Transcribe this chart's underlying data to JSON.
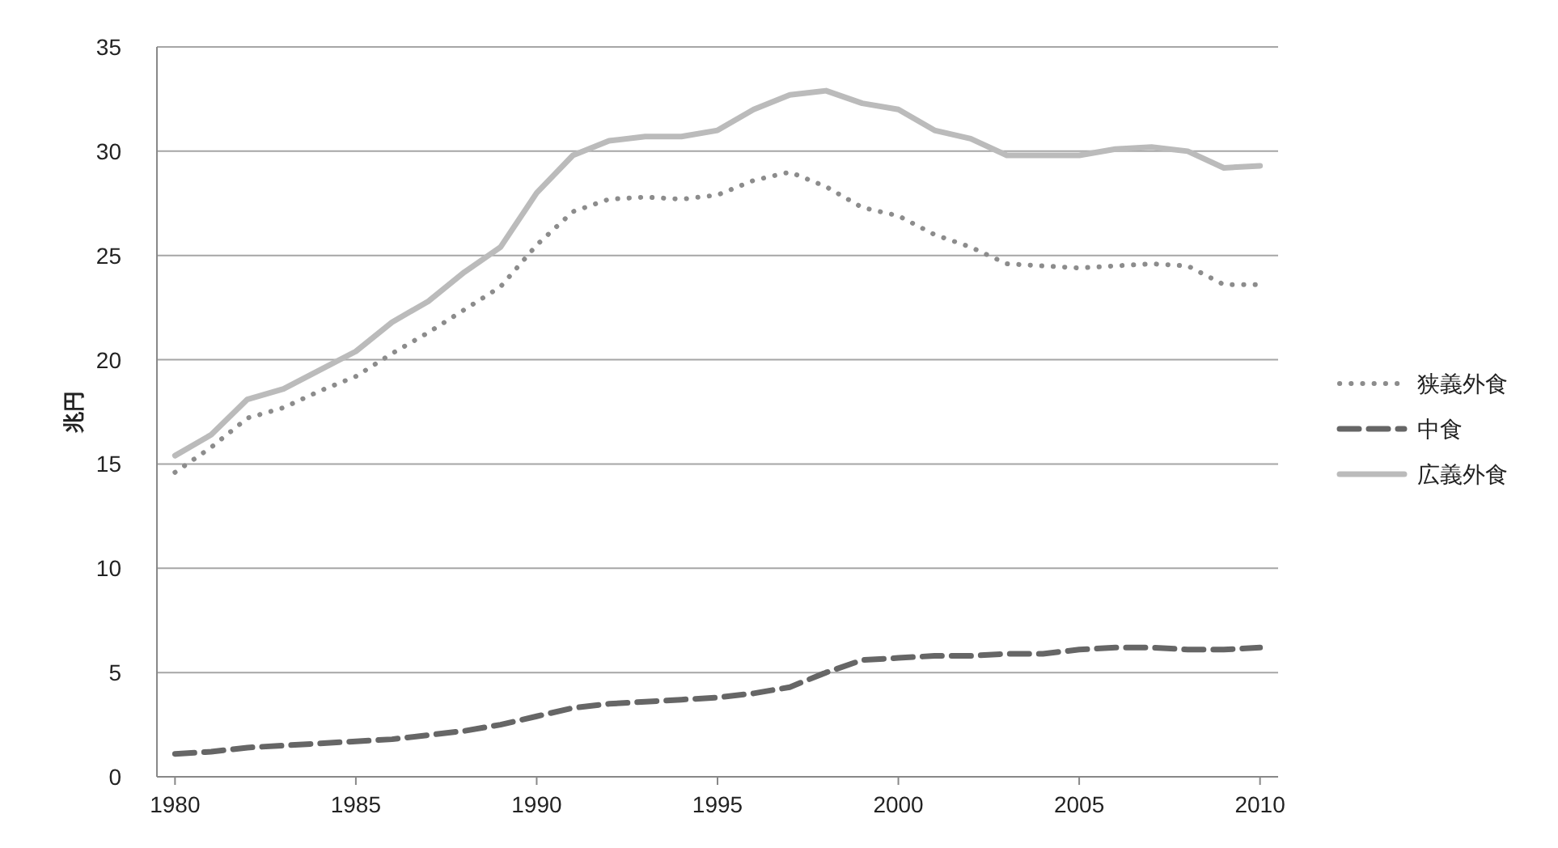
{
  "chart_data": {
    "type": "line",
    "ylabel": "兆円",
    "x": [
      1980,
      1981,
      1982,
      1983,
      1984,
      1985,
      1986,
      1987,
      1988,
      1989,
      1990,
      1991,
      1992,
      1993,
      1994,
      1995,
      1996,
      1997,
      1998,
      1999,
      2000,
      2001,
      2002,
      2003,
      2004,
      2005,
      2006,
      2007,
      2008,
      2009,
      2010
    ],
    "series": [
      {
        "name": "狭義外食",
        "color": "#8c8c8c",
        "line_style": "dotted",
        "values": [
          14.6,
          15.8,
          17.2,
          17.7,
          18.5,
          19.2,
          20.3,
          21.3,
          22.4,
          23.5,
          25.5,
          27.1,
          27.7,
          27.8,
          27.7,
          27.9,
          28.6,
          29.0,
          28.3,
          27.3,
          26.9,
          26.0,
          25.4,
          24.6,
          24.5,
          24.4,
          24.5,
          24.6,
          24.5,
          23.6,
          23.6
        ]
      },
      {
        "name": "中食",
        "color": "#666666",
        "line_style": "dashed",
        "values": [
          1.1,
          1.2,
          1.4,
          1.5,
          1.6,
          1.7,
          1.8,
          2.0,
          2.2,
          2.5,
          2.9,
          3.3,
          3.5,
          3.6,
          3.7,
          3.8,
          4.0,
          4.3,
          5.0,
          5.6,
          5.7,
          5.8,
          5.8,
          5.9,
          5.9,
          6.1,
          6.2,
          6.2,
          6.1,
          6.1,
          6.2
        ]
      },
      {
        "name": "広義外食",
        "color": "#bbbbbb",
        "line_style": "solid",
        "values": [
          15.4,
          16.4,
          18.1,
          18.6,
          19.5,
          20.4,
          21.8,
          22.8,
          24.2,
          25.4,
          28.0,
          29.8,
          30.5,
          30.7,
          30.7,
          31.0,
          32.0,
          32.7,
          32.9,
          32.3,
          32.0,
          31.0,
          30.6,
          29.8,
          29.8,
          29.8,
          30.1,
          30.2,
          30.0,
          29.2,
          29.3
        ]
      }
    ],
    "xlim": [
      1979.5,
      2010.5
    ],
    "xticks": [
      1980,
      1985,
      1990,
      1995,
      2000,
      2005,
      2010
    ],
    "ylim": [
      0,
      35
    ],
    "yticks": [
      0,
      5,
      10,
      15,
      20,
      25,
      30,
      35
    ],
    "grid": "y",
    "legend": "right"
  }
}
